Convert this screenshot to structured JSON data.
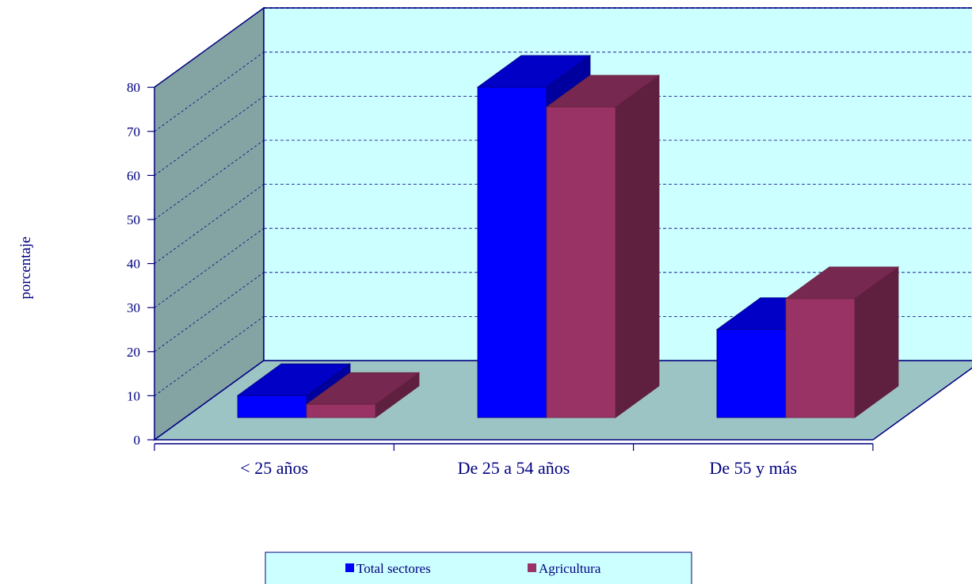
{
  "chart_data": {
    "type": "bar",
    "categories": [
      "< 25 años",
      "De 25 a 54 años",
      "De 55 y más"
    ],
    "series": [
      {
        "name": "Total sectores",
        "values": [
          5,
          75,
          20
        ],
        "color": "#0000FF"
      },
      {
        "name": "Agricultura",
        "values": [
          3,
          70.5,
          27
        ],
        "color": "#993366"
      }
    ],
    "ylabel": "porcentaje",
    "xlabel": "",
    "ylim": [
      0,
      80
    ],
    "yticks": [
      "0",
      "10",
      "20",
      "30",
      "40",
      "50",
      "60",
      "70",
      "80"
    ],
    "grid": true,
    "legend_position": "bottom",
    "colors": {
      "back_wall": "#CCFFFF",
      "side_wall": "#84A3A3",
      "floor": "#9DC4C4",
      "axis": "#000080"
    }
  }
}
